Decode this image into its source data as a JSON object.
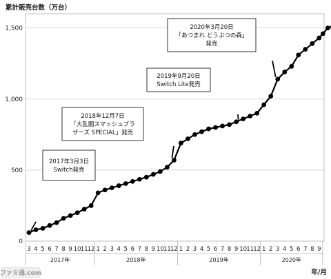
{
  "chart_data": {
    "type": "line",
    "title": "累計販売台数（万台）",
    "x_unit_label": "年/月",
    "yticks": [
      0,
      500,
      1000,
      1500
    ],
    "ytick_labels": [
      "0",
      "500",
      "1,000",
      "1,500"
    ],
    "ylim": [
      0,
      1600
    ],
    "grid": "horizontal",
    "legend": "none",
    "colors": {
      "line": "#000000",
      "marker": "#000000",
      "grid": "#c8c8c8"
    },
    "months": [
      "3",
      "4",
      "5",
      "6",
      "7",
      "8",
      "9",
      "10",
      "11",
      "12",
      "1",
      "2",
      "3",
      "4",
      "5",
      "6",
      "7",
      "8",
      "9",
      "10",
      "11",
      "12",
      "1",
      "2",
      "3",
      "4",
      "5",
      "6",
      "7",
      "8",
      "9",
      "10",
      "11",
      "12",
      "1",
      "2",
      "3",
      "4",
      "5",
      "6",
      "7",
      "8",
      "9"
    ],
    "years": [
      {
        "label": "2017年",
        "start": 0,
        "count": 10
      },
      {
        "label": "2018年",
        "start": 10,
        "count": 12
      },
      {
        "label": "2019年",
        "start": 22,
        "count": 12
      },
      {
        "label": "2020年",
        "start": 34,
        "count": 9
      }
    ],
    "values": [
      60,
      80,
      90,
      110,
      130,
      160,
      180,
      200,
      225,
      250,
      340,
      360,
      375,
      390,
      405,
      420,
      435,
      450,
      470,
      490,
      520,
      570,
      690,
      720,
      750,
      770,
      790,
      800,
      810,
      820,
      840,
      860,
      880,
      900,
      960,
      1020,
      1140,
      1190,
      1230,
      1310,
      1350,
      1390,
      1430
    ],
    "series_tail": [
      1460,
      1500,
      1510
    ],
    "annotations": [
      {
        "lines": [
          "2017年3月3日",
          "Switch発売"
        ],
        "point": 0
      },
      {
        "lines": [
          "2018年12月7日",
          "「大乱闘スマッシュブラ",
          "ザーズ SPECIAL」発売"
        ],
        "point": 21
      },
      {
        "lines": [
          "2019年9月20日",
          "Switch Lite発売"
        ],
        "point": 30
      },
      {
        "lines": [
          "2020年3月20日",
          "「あつまれ どうぶつの森」",
          "発売"
        ],
        "point": 36
      }
    ],
    "watermark": "ファミ通.com"
  }
}
